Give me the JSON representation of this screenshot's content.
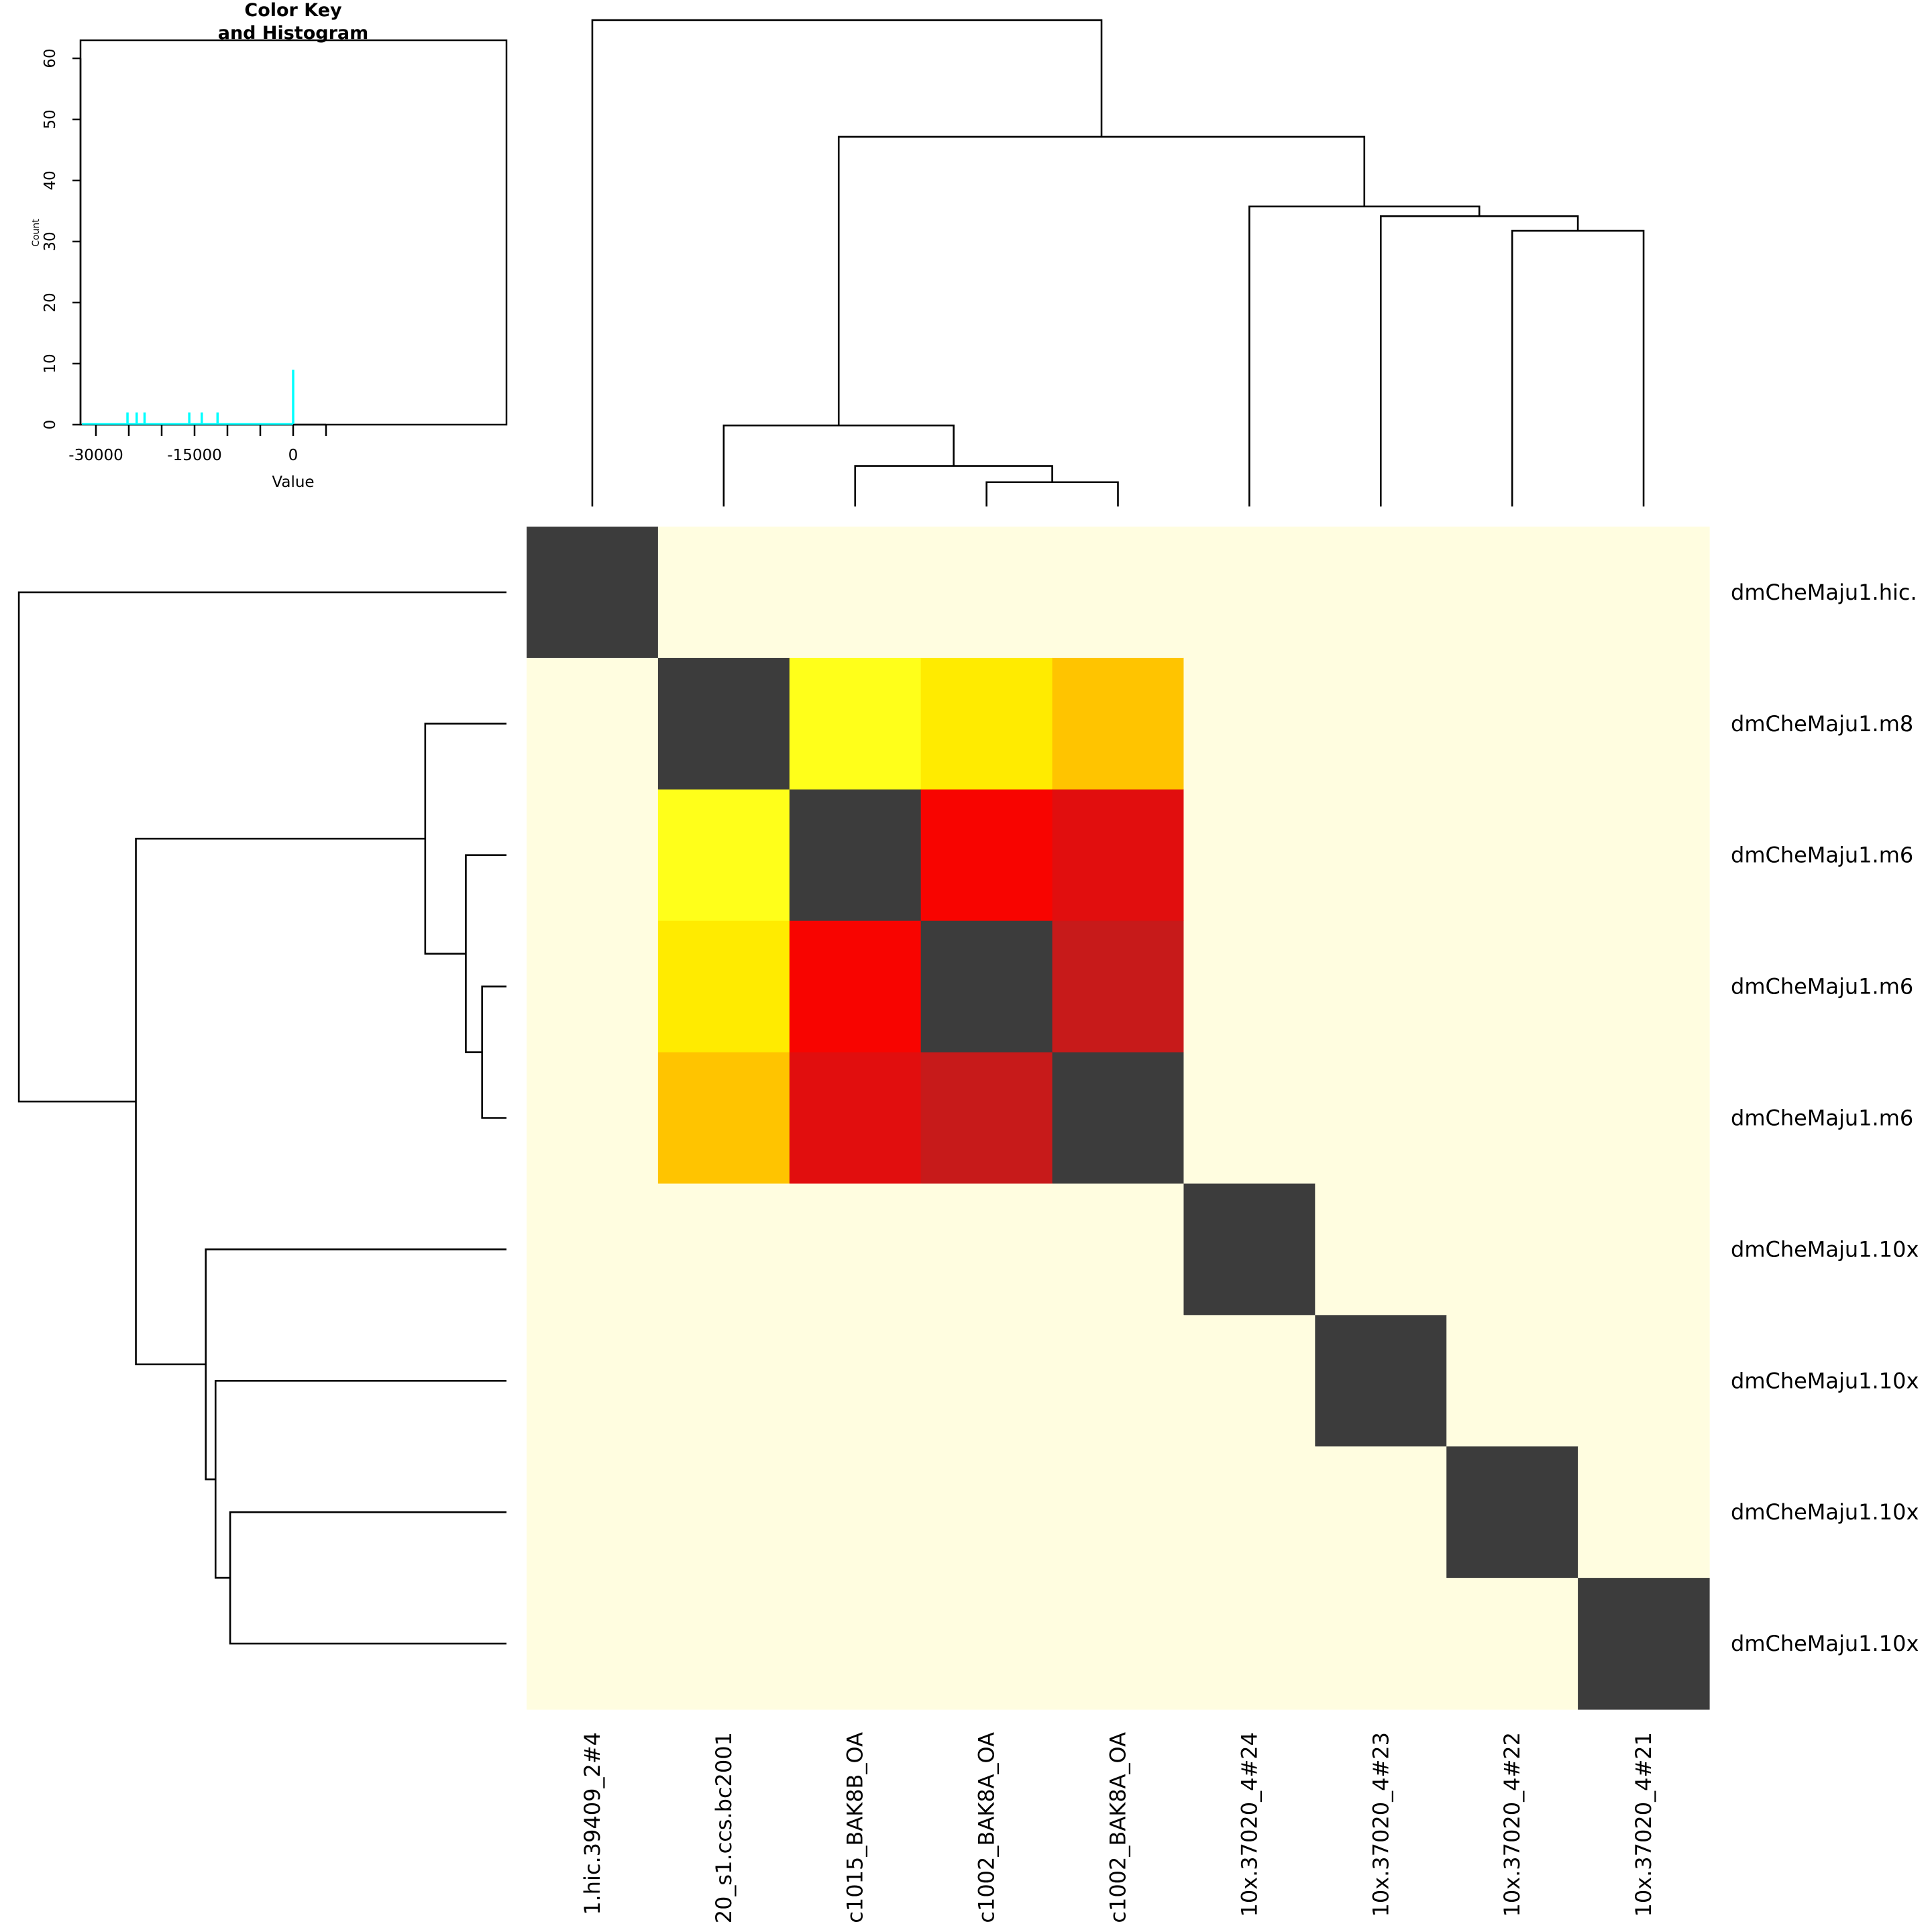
{
  "chart_data": [
    {
      "type": "heatmap",
      "title": "",
      "row_labels": [
        "dmCheMaju1.hic.",
        "dmCheMaju1.m8",
        "dmCheMaju1.m6",
        "dmCheMaju1.m6",
        "dmCheMaju1.m6",
        "dmCheMaju1.10x",
        "dmCheMaju1.10x",
        "dmCheMaju1.10x",
        "dmCheMaju1.10x"
      ],
      "col_labels": [
        "1.hic.39409_2#4",
        "20_s1.ccs.bc2001",
        "c1015_BAK8B_OA",
        "c1002_BAK8A_OA",
        "c1002_BAK8A_OA",
        "10x.37020_4#24",
        "10x.37020_4#23",
        "10x.37020_4#22",
        "10x.37020_4#21"
      ],
      "values": [
        [
          0,
          null,
          null,
          null,
          null,
          null,
          null,
          null,
          null
        ],
        [
          null,
          0,
          -11500,
          -13900,
          -15800,
          null,
          null,
          null,
          null
        ],
        [
          null,
          -11500,
          0,
          -22600,
          -23800,
          null,
          null,
          null,
          null
        ],
        [
          null,
          -13900,
          -22600,
          0,
          -25200,
          null,
          null,
          null,
          null
        ],
        [
          null,
          -15800,
          -23800,
          -25200,
          0,
          null,
          null,
          null,
          null
        ],
        [
          null,
          null,
          null,
          null,
          null,
          0,
          null,
          null,
          null
        ],
        [
          null,
          null,
          null,
          null,
          null,
          null,
          0,
          null,
          null
        ],
        [
          null,
          null,
          null,
          null,
          null,
          null,
          null,
          0,
          null
        ],
        [
          null,
          null,
          null,
          null,
          null,
          null,
          null,
          null,
          0
        ]
      ],
      "color_scale": {
        "diagonal": "#3C3C3C",
        "missing": "#FFFDE0",
        "stops": [
          {
            "value": -25200,
            "color": "#C71A1A"
          },
          {
            "value": -23800,
            "color": "#E10E0E"
          },
          {
            "value": -22600,
            "color": "#F80400"
          },
          {
            "value": -15800,
            "color": "#FFC400"
          },
          {
            "value": -13900,
            "color": "#FFEB00"
          },
          {
            "value": -11500,
            "color": "#FFFF1A"
          }
        ]
      },
      "col_dendrogram": {
        "merges": [
          {
            "id": "D",
            "left": 3,
            "right": 4,
            "height": 1.5
          },
          {
            "id": "C",
            "left": 2,
            "right": "D",
            "height": 2.5
          },
          {
            "id": "B",
            "left": 1,
            "right": "C",
            "height": 5.0
          },
          {
            "id": "G",
            "left": 7,
            "right": 8,
            "height": 17.0
          },
          {
            "id": "F",
            "left": 6,
            "right": "G",
            "height": 17.9
          },
          {
            "id": "E",
            "left": 5,
            "right": "F",
            "height": 18.5
          },
          {
            "id": "A",
            "left": "B",
            "right": "E",
            "height": 22.8
          },
          {
            "id": "R",
            "left": 0,
            "right": "A",
            "height": 30.0
          }
        ]
      },
      "row_dendrogram": {
        "merges": [
          {
            "id": "D",
            "left": 3,
            "right": 4,
            "height": 1.5
          },
          {
            "id": "C",
            "left": 2,
            "right": "D",
            "height": 2.5
          },
          {
            "id": "B",
            "left": 1,
            "right": "C",
            "height": 5.0
          },
          {
            "id": "G",
            "left": 7,
            "right": 8,
            "height": 17.0
          },
          {
            "id": "F",
            "left": 6,
            "right": "G",
            "height": 17.9
          },
          {
            "id": "E",
            "left": 5,
            "right": "F",
            "height": 18.5
          },
          {
            "id": "A",
            "left": "B",
            "right": "E",
            "height": 22.8
          },
          {
            "id": "R",
            "left": 0,
            "right": "A",
            "height": 30.0
          }
        ]
      }
    },
    {
      "type": "bar",
      "title": "Color Key\nand Histogram",
      "title_lines": [
        "Color Key",
        "and Histogram"
      ],
      "xlabel": "Value",
      "ylabel": "Count",
      "xlim": [
        -32500,
        17000
      ],
      "ylim": [
        0,
        63
      ],
      "x_ticks": [
        -30000,
        -25000,
        -20000,
        -15000,
        -10000,
        -5000,
        0,
        5000
      ],
      "x_tick_labels": [
        "-30000",
        "",
        "",
        "-15000",
        "",
        "",
        "0",
        ""
      ],
      "y_ticks": [
        0,
        10,
        20,
        30,
        40,
        50,
        60
      ],
      "y_tick_labels": [
        "0",
        "10",
        "20",
        "30",
        "40",
        "50",
        "60"
      ],
      "bars": [
        {
          "x": -25200,
          "count": 2
        },
        {
          "x": -23800,
          "count": 2
        },
        {
          "x": -22600,
          "count": 2
        },
        {
          "x": -15800,
          "count": 2
        },
        {
          "x": -13900,
          "count": 2
        },
        {
          "x": -11500,
          "count": 2
        },
        {
          "x": 0,
          "count": 9
        }
      ],
      "trace_color": "#00FFFF"
    }
  ]
}
